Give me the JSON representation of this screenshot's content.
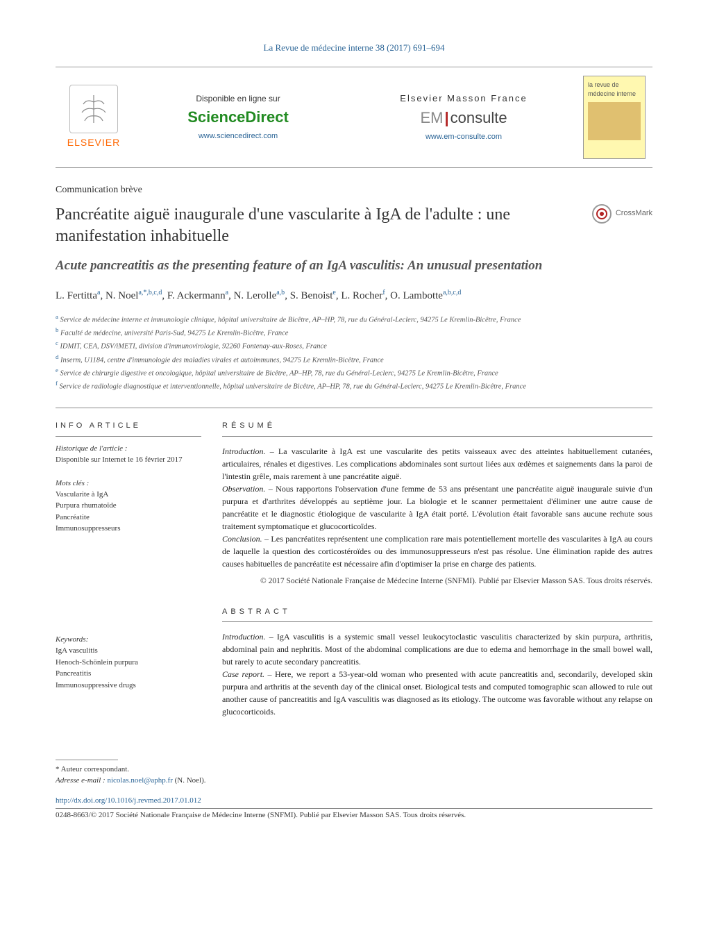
{
  "journal_ref": "La Revue de médecine interne 38 (2017) 691–694",
  "banner": {
    "elsevier": "ELSEVIER",
    "available": "Disponible en ligne sur",
    "sciencedirect": "ScienceDirect",
    "sd_url": "www.sciencedirect.com",
    "masson": "Elsevier Masson France",
    "em_em": "EM",
    "em_consulte": "consulte",
    "em_url": "www.em-consulte.com",
    "cover_title": "la revue de médecine interne"
  },
  "article_type": "Communication brève",
  "title_fr": "Pancréatite aiguë inaugurale d'une vascularite à IgA de l'adulte : une manifestation inhabituelle",
  "title_en": "Acute pancreatitis as the presenting feature of an IgA vasculitis: An unusual presentation",
  "crossmark": "CrossMark",
  "authors_html": "L. Fertitta<sup>a</sup>, N. Noel<sup>a,*,b,c,d</sup>, F. Ackermann<sup>a</sup>, N. Lerolle<sup>a,b</sup>, S. Benoist<sup>e</sup>, L. Rocher<sup>f</sup>, O. Lambotte<sup>a,b,c,d</sup>",
  "affiliations": [
    {
      "sup": "a",
      "text": "Service de médecine interne et immunologie clinique, hôpital universitaire de Bicêtre, AP–HP, 78, rue du Général-Leclerc, 94275 Le Kremlin-Bicêtre, France"
    },
    {
      "sup": "b",
      "text": "Faculté de médecine, université Paris-Sud, 94275 Le Kremlin-Bicêtre, France"
    },
    {
      "sup": "c",
      "text": "IDMIT, CEA, DSV/iMETI, division d'immunovirologie, 92260 Fontenay-aux-Roses, France"
    },
    {
      "sup": "d",
      "text": "Inserm, U1184, centre d'immunologie des maladies virales et autoimmunes, 94275 Le Kremlin-Bicêtre, France"
    },
    {
      "sup": "e",
      "text": "Service de chirurgie digestive et oncologique, hôpital universitaire de Bicêtre, AP–HP, 78, rue du Général-Leclerc, 94275 Le Kremlin-Bicêtre, France"
    },
    {
      "sup": "f",
      "text": "Service de radiologie diagnostique et interventionnelle, hôpital universitaire de Bicêtre, AP–HP, 78, rue du Général-Leclerc, 94275 Le Kremlin-Bicêtre, France"
    }
  ],
  "info": {
    "heading": "INFO ARTICLE",
    "history_label": "Historique de l'article :",
    "history_text": "Disponible sur Internet le 16 février 2017",
    "mots_label": "Mots clés :",
    "mots": [
      "Vascularite à IgA",
      "Purpura rhumatoïde",
      "Pancréatite",
      "Immunosuppresseurs"
    ],
    "keywords_label": "Keywords:",
    "keywords": [
      "IgA vasculitis",
      "Henoch-Schönlein purpura",
      "Pancreatitis",
      "Immunosuppressive drugs"
    ]
  },
  "resume": {
    "heading": "RÉSUMÉ",
    "intro_lead": "Introduction. –",
    "intro": "La vascularite à IgA est une vascularite des petits vaisseaux avec des atteintes habituellement cutanées, articulaires, rénales et digestives. Les complications abdominales sont surtout liées aux œdèmes et saignements dans la paroi de l'intestin grêle, mais rarement à une pancréatite aiguë.",
    "obs_lead": "Observation. –",
    "obs": "Nous rapportons l'observation d'une femme de 53 ans présentant une pancréatite aiguë inaugurale suivie d'un purpura et d'arthrites développés au septième jour. La biologie et le scanner permettaient d'éliminer une autre cause de pancréatite et le diagnostic étiologique de vascularite à IgA était porté. L'évolution était favorable sans aucune rechute sous traitement symptomatique et glucocorticoïdes.",
    "conc_lead": "Conclusion. –",
    "conc": "Les pancréatites représentent une complication rare mais potentiellement mortelle des vascularites à IgA au cours de laquelle la question des corticostéroïdes ou des immunosuppresseurs n'est pas résolue. Une élimination rapide des autres causes habituelles de pancréatite est nécessaire afin d'optimiser la prise en charge des patients.",
    "copyright": "© 2017 Société Nationale Française de Médecine Interne (SNFMI). Publié par Elsevier Masson SAS. Tous droits réservés."
  },
  "abstract": {
    "heading": "ABSTRACT",
    "intro_lead": "Introduction. –",
    "intro": "IgA vasculitis is a systemic small vessel leukocytoclastic vasculitis characterized by skin purpura, arthritis, abdominal pain and nephritis. Most of the abdominal complications are due to edema and hemorrhage in the small bowel wall, but rarely to acute secondary pancreatitis.",
    "case_lead": "Case report. –",
    "case": "Here, we report a 53-year-old woman who presented with acute pancreatitis and, secondarily, developed skin purpura and arthritis at the seventh day of the clinical onset. Biological tests and computed tomographic scan allowed to rule out another cause of pancreatitis and IgA vasculitis was diagnosed as its etiology. The outcome was favorable without any relapse on glucocorticoids."
  },
  "footer": {
    "corresp": "* Auteur correspondant.",
    "email_label": "Adresse e-mail :",
    "email": "nicolas.noel@aphp.fr",
    "email_name": "(N. Noel).",
    "doi": "http://dx.doi.org/10.1016/j.revmed.2017.01.012",
    "issn_line": "0248-8663/© 2017 Société Nationale Française de Médecine Interne (SNFMI). Publié par Elsevier Masson SAS. Tous droits réservés."
  },
  "colors": {
    "link": "#2a6496",
    "elsevier_orange": "#ff6600",
    "sd_green": "#228b22",
    "em_red": "#b22222",
    "cover_bg": "#fff8b0"
  }
}
